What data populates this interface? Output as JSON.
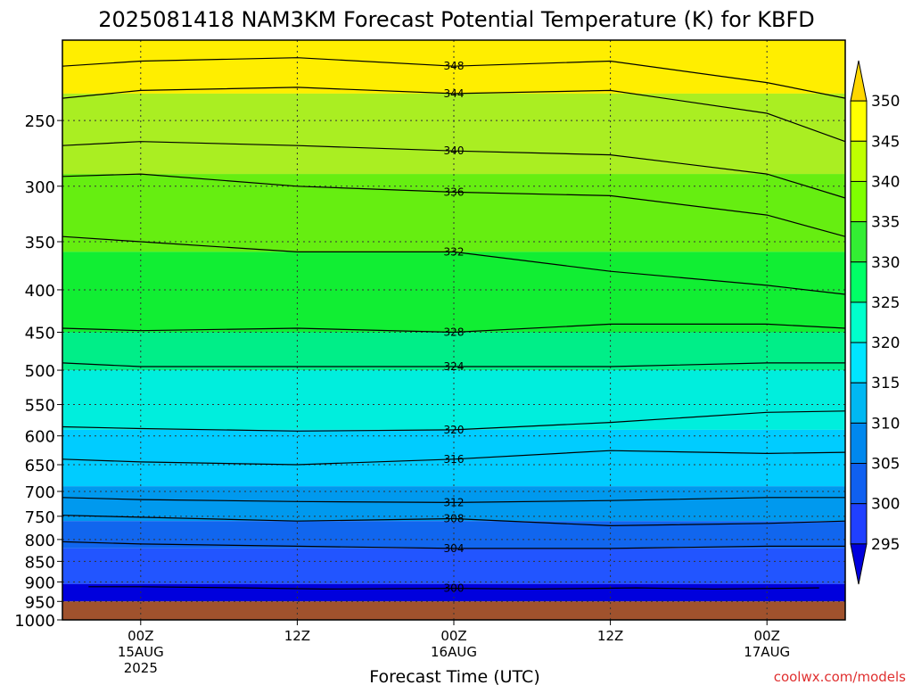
{
  "chart_data": {
    "type": "heatmap",
    "title": "2025081418 NAM3KM Forecast Potential Temperature (K) for KBFD",
    "xlabel": "Forecast Time (UTC)",
    "ylabel": "",
    "y_scale": "log-pressure (reversed)",
    "ylim": [
      1000,
      200
    ],
    "y_ticks": [
      "250",
      "300",
      "350",
      "400",
      "450",
      "500",
      "550",
      "600",
      "650",
      "700",
      "750",
      "800",
      "850",
      "900",
      "950",
      "1000"
    ],
    "x_ticks": [
      {
        "label": "00Z",
        "sub1": "15AUG",
        "sub2": "2025"
      },
      {
        "label": "12Z",
        "sub1": "",
        "sub2": ""
      },
      {
        "label": "00Z",
        "sub1": "16AUG",
        "sub2": ""
      },
      {
        "label": "12Z",
        "sub1": "",
        "sub2": ""
      },
      {
        "label": "00Z",
        "sub1": "17AUG",
        "sub2": ""
      }
    ],
    "xlim_hours": [
      -6,
      54
    ],
    "surface_pressure_hpa": 950,
    "colorbar_labels": [
      "350",
      "345",
      "340",
      "335",
      "330",
      "325",
      "320",
      "315",
      "310",
      "305",
      "300",
      "295"
    ],
    "colorbar_colors": [
      "#FFD700",
      "#FFFF00",
      "#BFFF00",
      "#7FFF00",
      "#33EE33",
      "#00FF66",
      "#00FFCC",
      "#00E5FF",
      "#00B8F2",
      "#0088EE",
      "#1060F0",
      "#2040FF",
      "#0000DD"
    ],
    "series": [
      {
        "name": "300",
        "x": [
          -4,
          0,
          8,
          14,
          24,
          30,
          38,
          44,
          52
        ],
        "pressure": [
          912,
          912,
          915,
          918,
          916,
          918,
          915,
          918,
          915
        ]
      },
      {
        "name": "304",
        "x": [
          -6,
          0,
          12,
          24,
          36,
          48,
          54
        ],
        "pressure": [
          805,
          810,
          815,
          820,
          820,
          815,
          815
        ]
      },
      {
        "name": "308",
        "x": [
          -6,
          0,
          12,
          24,
          36,
          48,
          54
        ],
        "pressure": [
          748,
          752,
          760,
          755,
          770,
          765,
          760
        ]
      },
      {
        "name": "312",
        "x": [
          -6,
          0,
          12,
          24,
          36,
          48,
          54
        ],
        "pressure": [
          712,
          716,
          720,
          722,
          718,
          712,
          712
        ]
      },
      {
        "name": "316",
        "x": [
          -6,
          0,
          12,
          24,
          36,
          48,
          54
        ],
        "pressure": [
          640,
          645,
          650,
          640,
          625,
          630,
          628
        ]
      },
      {
        "name": "320",
        "x": [
          -6,
          0,
          12,
          24,
          36,
          48,
          54
        ],
        "pressure": [
          585,
          588,
          592,
          590,
          578,
          562,
          560
        ]
      },
      {
        "name": "324",
        "x": [
          -6,
          0,
          12,
          24,
          36,
          48,
          54
        ],
        "pressure": [
          490,
          495,
          495,
          495,
          495,
          490,
          490
        ]
      },
      {
        "name": "328",
        "x": [
          -6,
          0,
          12,
          24,
          36,
          48,
          54
        ],
        "pressure": [
          445,
          448,
          445,
          450,
          440,
          440,
          445
        ]
      },
      {
        "name": "332",
        "x": [
          -6,
          0,
          12,
          24,
          36,
          48,
          54
        ],
        "pressure": [
          345,
          350,
          360,
          360,
          380,
          395,
          405
        ]
      },
      {
        "name": "336",
        "x": [
          -6,
          0,
          12,
          24,
          36,
          48,
          54
        ],
        "pressure": [
          292,
          290,
          300,
          305,
          308,
          325,
          345
        ]
      },
      {
        "name": "340",
        "x": [
          -6,
          0,
          12,
          24,
          36,
          48,
          54
        ],
        "pressure": [
          268,
          265,
          268,
          272,
          275,
          290,
          310
        ]
      },
      {
        "name": "344",
        "x": [
          -6,
          0,
          12,
          24,
          36,
          48,
          54
        ],
        "pressure": [
          235,
          230,
          228,
          232,
          230,
          245,
          265
        ]
      },
      {
        "name": "348",
        "x": [
          -6,
          0,
          12,
          24,
          36,
          48,
          54
        ],
        "pressure": [
          215,
          212,
          210,
          215,
          212,
          225,
          235
        ]
      }
    ]
  },
  "credit": "coolwx.com/models"
}
